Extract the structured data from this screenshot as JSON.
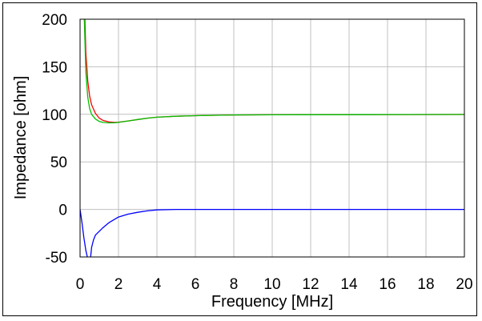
{
  "chart_data": {
    "type": "line",
    "title": "",
    "xlabel": "Frequency [MHz]",
    "ylabel": "Impedance [ohm]",
    "xlim": [
      0,
      20
    ],
    "ylim": [
      -50,
      200
    ],
    "xticks": [
      0,
      2,
      4,
      6,
      8,
      10,
      12,
      14,
      16,
      18,
      20
    ],
    "yticks": [
      -50,
      0,
      50,
      100,
      150,
      200
    ],
    "grid": true,
    "legend": "none",
    "series": [
      {
        "color": "#ff0000",
        "x": [
          0.25,
          0.3,
          0.4,
          0.5,
          0.6,
          0.8,
          1.0,
          1.2,
          1.5,
          1.8,
          2.0,
          2.5,
          3.0,
          3.5,
          4.0,
          5.0,
          6.0,
          7.0,
          8.0,
          10.0,
          12.0,
          15.0,
          20.0
        ],
        "y": [
          200,
          165,
          135,
          119,
          110,
          101,
          96,
          93.5,
          92,
          91.5,
          91.7,
          93,
          94.5,
          96,
          97,
          98,
          98.6,
          99,
          99.3,
          99.5,
          99.6,
          99.7,
          99.8
        ]
      },
      {
        "color": "#00c000",
        "x": [
          0.22,
          0.3,
          0.4,
          0.5,
          0.6,
          0.8,
          1.0,
          1.2,
          1.5,
          1.8,
          2.0,
          2.5,
          3.0,
          3.5,
          4.0,
          5.0,
          6.0,
          7.0,
          8.0,
          10.0,
          12.0,
          15.0,
          20.0
        ],
        "y": [
          200,
          145,
          118,
          106,
          100,
          95,
          92.5,
          91.5,
          91,
          91.2,
          91.5,
          93,
          94.5,
          96,
          97,
          98,
          98.6,
          99,
          99.3,
          99.5,
          99.6,
          99.7,
          99.8
        ]
      },
      {
        "color": "#0000ff",
        "x": [
          0.0,
          0.1,
          0.2,
          0.3,
          0.4,
          0.5,
          0.55,
          0.6,
          0.7,
          0.8,
          1.0,
          1.2,
          1.5,
          2.0,
          2.5,
          3.0,
          3.5,
          4.0,
          5.0,
          6.0,
          8.0,
          10.0,
          15.0,
          20.0
        ],
        "y": [
          0,
          -14,
          -30,
          -43,
          -52,
          -52,
          -50,
          -40,
          -32,
          -27,
          -23,
          -19,
          -14,
          -8,
          -5,
          -3,
          -1.5,
          -0.5,
          0,
          0,
          0,
          0,
          0,
          0
        ]
      }
    ]
  }
}
